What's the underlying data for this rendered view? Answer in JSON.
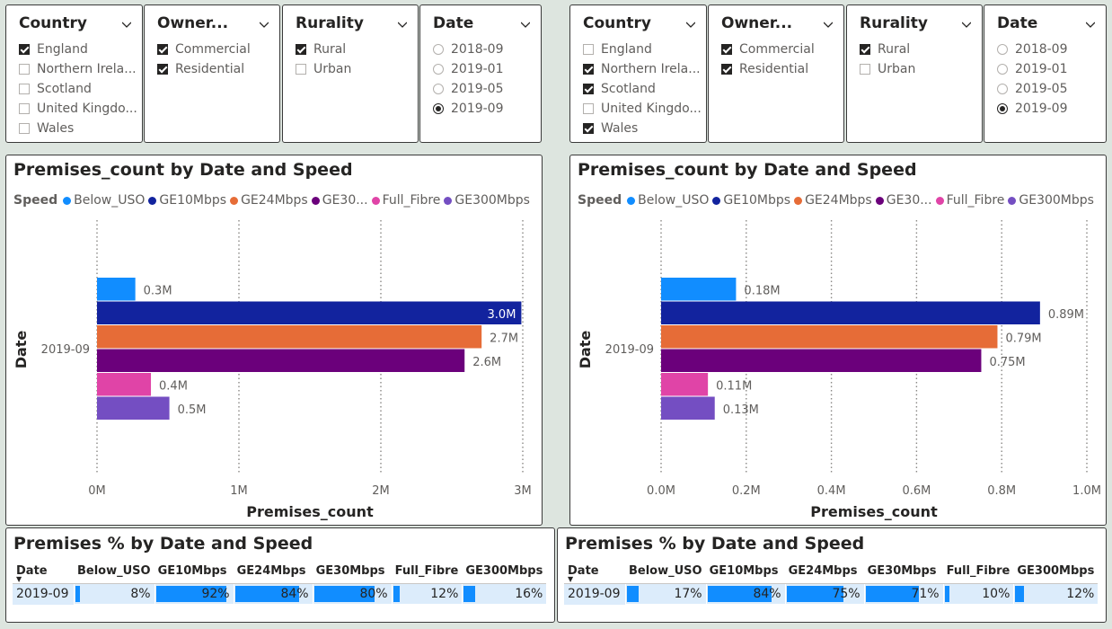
{
  "colors": {
    "Below_USO": "#118dff",
    "GE10Mbps": "#12239e",
    "GE24Mbps": "#e66c37",
    "GE30Mbps": "#6b007b",
    "Full_Fibre": "#e044a7",
    "GE300Mbps": "#744ec2",
    "table_bar": "#118dff",
    "table_bg": "#dcecfb"
  },
  "left": {
    "slicers": {
      "country": {
        "title": "Country",
        "items": [
          {
            "label": "England",
            "checked": true
          },
          {
            "label": "Northern Irela...",
            "checked": false
          },
          {
            "label": "Scotland",
            "checked": false
          },
          {
            "label": "United Kingdo...",
            "checked": false
          },
          {
            "label": "Wales",
            "checked": false
          }
        ]
      },
      "owner": {
        "title": "Owner...",
        "items": [
          {
            "label": "Commercial",
            "checked": true
          },
          {
            "label": "Residential",
            "checked": true
          }
        ]
      },
      "rurality": {
        "title": "Rurality",
        "items": [
          {
            "label": "Rural",
            "checked": true
          },
          {
            "label": "Urban",
            "checked": false
          }
        ]
      },
      "date": {
        "title": "Date",
        "items": [
          {
            "label": "2018-09",
            "selected": false
          },
          {
            "label": "2019-01",
            "selected": false
          },
          {
            "label": "2019-05",
            "selected": false
          },
          {
            "label": "2019-09",
            "selected": true
          }
        ]
      }
    },
    "chart": {
      "title": "Premises_count by Date and Speed",
      "legend_title": "Speed",
      "legend": [
        "Below_USO",
        "GE10Mbps",
        "GE24Mbps",
        "GE30...",
        "Full_Fibre",
        "GE300Mbps"
      ],
      "xlabel": "Premises_count",
      "ylabel": "Date",
      "category": "2019-09",
      "ticks": [
        "0M",
        "1M",
        "2M",
        "3M"
      ]
    },
    "table": {
      "title": "Premises % by Date and Speed",
      "headers": [
        "Date",
        "Below_USO",
        "GE10Mbps",
        "GE24Mbps",
        "GE30Mbps",
        "Full_Fibre",
        "GE300Mbps"
      ],
      "row": {
        "date": "2019-09",
        "labels": [
          "8%",
          "92%",
          "84%",
          "80%",
          "12%",
          "16%"
        ],
        "values": [
          0.08,
          0.92,
          0.84,
          0.8,
          0.12,
          0.16
        ]
      }
    }
  },
  "right": {
    "slicers": {
      "country": {
        "title": "Country",
        "items": [
          {
            "label": "England",
            "checked": false
          },
          {
            "label": "Northern Irela...",
            "checked": true
          },
          {
            "label": "Scotland",
            "checked": true
          },
          {
            "label": "United Kingdo...",
            "checked": false
          },
          {
            "label": "Wales",
            "checked": true
          }
        ]
      },
      "owner": {
        "title": "Owner...",
        "items": [
          {
            "label": "Commercial",
            "checked": true
          },
          {
            "label": "Residential",
            "checked": true
          }
        ]
      },
      "rurality": {
        "title": "Rurality",
        "items": [
          {
            "label": "Rural",
            "checked": true
          },
          {
            "label": "Urban",
            "checked": false
          }
        ]
      },
      "date": {
        "title": "Date",
        "items": [
          {
            "label": "2018-09",
            "selected": false
          },
          {
            "label": "2019-01",
            "selected": false
          },
          {
            "label": "2019-05",
            "selected": false
          },
          {
            "label": "2019-09",
            "selected": true
          }
        ]
      }
    },
    "chart": {
      "title": "Premises_count by Date and Speed",
      "legend_title": "Speed",
      "legend": [
        "Below_USO",
        "GE10Mbps",
        "GE24Mbps",
        "GE30...",
        "Full_Fibre",
        "GE300Mbps"
      ],
      "xlabel": "Premises_count",
      "ylabel": "Date",
      "category": "2019-09",
      "ticks": [
        "0.0M",
        "0.2M",
        "0.4M",
        "0.6M",
        "0.8M",
        "1.0M"
      ]
    },
    "table": {
      "title": "Premises % by Date and Speed",
      "headers": [
        "Date",
        "Below_USO",
        "GE10Mbps",
        "GE24Mbps",
        "GE30Mbps",
        "Full_Fibre",
        "GE300Mbps"
      ],
      "row": {
        "date": "2019-09",
        "labels": [
          "17%",
          "84%",
          "75%",
          "71%",
          "10%",
          "12%"
        ],
        "values": [
          0.17,
          0.84,
          0.75,
          0.71,
          0.1,
          0.12
        ]
      }
    }
  },
  "chart_data": [
    {
      "type": "bar",
      "orientation": "horizontal",
      "title": "Premises_count by Date and Speed",
      "xlabel": "Premises_count",
      "ylabel": "Date",
      "categories": [
        "2019-09"
      ],
      "xlim": [
        0,
        3000000
      ],
      "grid": true,
      "legend_position": "top-left",
      "series": [
        {
          "name": "Below_USO",
          "values": [
            270000
          ],
          "label": "0.3M"
        },
        {
          "name": "GE10Mbps",
          "values": [
            2990000
          ],
          "label": "3.0M"
        },
        {
          "name": "GE24Mbps",
          "values": [
            2710000
          ],
          "label": "2.7M"
        },
        {
          "name": "GE30Mbps",
          "values": [
            2590000
          ],
          "label": "2.6M"
        },
        {
          "name": "Full_Fibre",
          "values": [
            380000
          ],
          "label": "0.4M"
        },
        {
          "name": "GE300Mbps",
          "values": [
            510000
          ],
          "label": "0.5M"
        }
      ]
    },
    {
      "type": "bar",
      "orientation": "horizontal",
      "title": "Premises_count by Date and Speed",
      "xlabel": "Premises_count",
      "ylabel": "Date",
      "categories": [
        "2019-09"
      ],
      "xlim": [
        0,
        1000000
      ],
      "grid": true,
      "legend_position": "top-left",
      "series": [
        {
          "name": "Below_USO",
          "values": [
            176000
          ],
          "label": "0.18M"
        },
        {
          "name": "GE10Mbps",
          "values": [
            890000
          ],
          "label": "0.89M"
        },
        {
          "name": "GE24Mbps",
          "values": [
            790000
          ],
          "label": "0.79M"
        },
        {
          "name": "GE30Mbps",
          "values": [
            752000
          ],
          "label": "0.75M"
        },
        {
          "name": "Full_Fibre",
          "values": [
            110000
          ],
          "label": "0.11M"
        },
        {
          "name": "GE300Mbps",
          "values": [
            126000
          ],
          "label": "0.13M"
        }
      ]
    }
  ]
}
